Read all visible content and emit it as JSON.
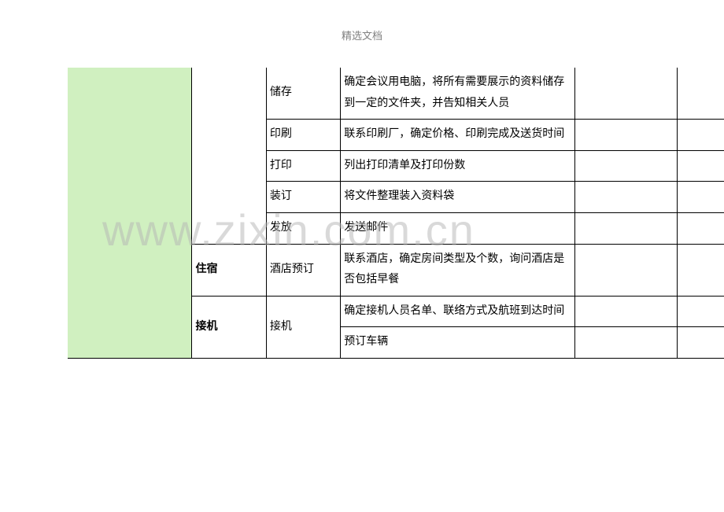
{
  "header": {
    "title": "精选文档"
  },
  "watermark": {
    "text": "www.zixin.com.cn"
  },
  "categories": {
    "accommodation": "住宿",
    "pickup": "接机"
  },
  "tasks": {
    "storage": "储存",
    "printing": "印刷",
    "print": "打印",
    "binding": "装订",
    "distribute": "发放",
    "hotel_booking": "酒店预订",
    "pickup": "接机"
  },
  "descriptions": {
    "storage": "确定会议用电脑，将所有需要展示的资料储存到一定的文件夹，并告知相关人员",
    "printing": "联系印刷厂，确定价格、印刷完成及送货时间",
    "print": "列出打印清单及打印份数",
    "binding": "将文件整理装入资料袋",
    "distribute": "发送邮件",
    "hotel_booking": "联系酒店，确定房间类型及个数，询问酒店是否包括早餐",
    "pickup1": "确定接机人员名单、联络方式及航班到达时间",
    "pickup2": "预订车辆"
  },
  "colors": {
    "green_bg": "#d0f0c0",
    "border": "#000000",
    "text": "#000000",
    "header_text": "#808080",
    "watermark": "rgba(180, 180, 180, 0.5)"
  }
}
